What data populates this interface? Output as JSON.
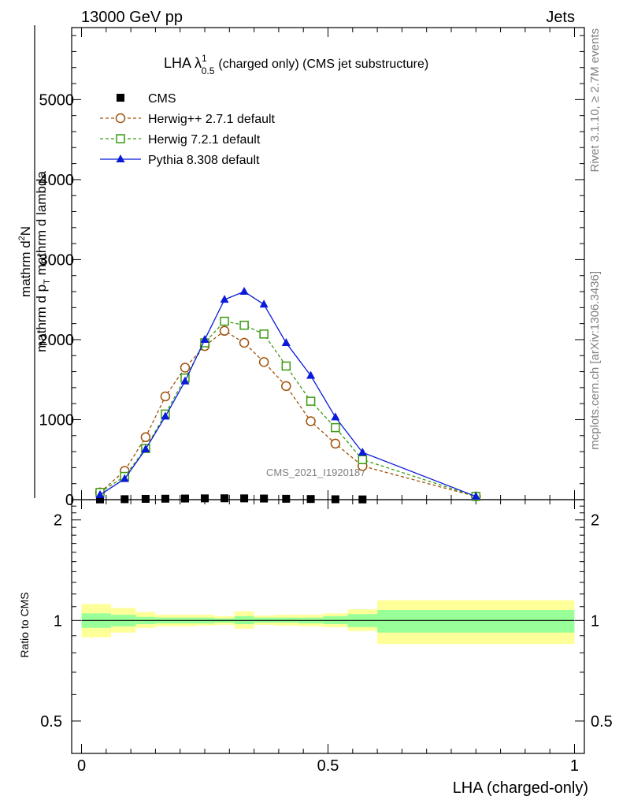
{
  "header": {
    "energy_label": "13000 GeV pp",
    "process_label": "Jets"
  },
  "side": {
    "rivet_label": "Rivet 3.1.10, ≥ 2.7M events",
    "source_label": "mcplots.cern.ch [arXiv:1306.3436]"
  },
  "chart_data": [
    {
      "type": "line",
      "title_main": "LHA λ",
      "title_sup": "1",
      "title_sub": "0.5",
      "title_rest": "(charged only) (CMS jet substructure)",
      "watermark": "CMS_2021_I1920187",
      "ylabel_num_frac_top": "1",
      "ylabel_num_frac_bottom": "mathrm d N / mathrm d p",
      "ylabel_num_sub": "T",
      "ylabel_num_rest": " mathrm d p",
      "ylabel_num_rest_sub": "T",
      "ylabel_num_tail": "mathrm d lambda",
      "ylabel_top": "mathrm d",
      "ylabel_top_sup": "2",
      "ylabel_top_rest": "N",
      "ylabel_bottom": "mathrm d p",
      "ylabel_bottom_sub": "T",
      "ylabel_bottom_rest": " mathrm d lambda",
      "xlim": [
        -0.02,
        1.02
      ],
      "ylim": [
        0,
        5900
      ],
      "y_ticks": [
        0,
        1000,
        2000,
        3000,
        4000,
        5000
      ],
      "y_tick_labels": [
        "0",
        "1000",
        "2000",
        "3000",
        "4000",
        "5000"
      ],
      "legend_position": "top-left",
      "series": [
        {
          "name": "CMS",
          "color": "#000000",
          "marker": "square-filled",
          "x": [
            0.0375,
            0.0875,
            0.13,
            0.17,
            0.21,
            0.25,
            0.29,
            0.33,
            0.37,
            0.415,
            0.465,
            0.515,
            0.57
          ],
          "y": [
            3,
            6,
            10,
            12,
            14,
            16,
            17,
            16,
            14,
            11,
            8,
            5,
            3
          ]
        },
        {
          "name": "Herwig++ 2.7.1 default",
          "color": "#a0520a",
          "marker": "circle-open",
          "dashed": true,
          "x": [
            0.0375,
            0.0875,
            0.13,
            0.17,
            0.21,
            0.25,
            0.29,
            0.33,
            0.37,
            0.415,
            0.465,
            0.515,
            0.57,
            0.8
          ],
          "y": [
            90,
            360,
            780,
            1290,
            1650,
            1920,
            2110,
            1960,
            1720,
            1420,
            980,
            700,
            420,
            40
          ]
        },
        {
          "name": "Herwig 7.2.1 default",
          "color": "#3a9a12",
          "marker": "square-open",
          "dashed": true,
          "x": [
            0.0375,
            0.0875,
            0.13,
            0.17,
            0.21,
            0.25,
            0.29,
            0.33,
            0.37,
            0.415,
            0.465,
            0.515,
            0.57,
            0.8
          ],
          "y": [
            90,
            290,
            640,
            1070,
            1520,
            1960,
            2230,
            2180,
            2070,
            1670,
            1230,
            900,
            500,
            40
          ]
        },
        {
          "name": "Pythia 8.308 default",
          "color": "#0a1ad8",
          "marker": "triangle-filled",
          "dashed": false,
          "x": [
            0.0375,
            0.0875,
            0.13,
            0.17,
            0.21,
            0.25,
            0.29,
            0.33,
            0.37,
            0.415,
            0.465,
            0.515,
            0.57,
            0.8
          ],
          "y": [
            60,
            260,
            630,
            1040,
            1480,
            2000,
            2500,
            2600,
            2440,
            1960,
            1550,
            1030,
            590,
            40
          ]
        }
      ]
    },
    {
      "type": "area",
      "ylabel": "Ratio to CMS",
      "xlabel": "LHA (charged-only)",
      "xlim": [
        -0.02,
        1.02
      ],
      "ylim": [
        0.4,
        2.3
      ],
      "x_ticks": [
        0,
        0.5,
        1
      ],
      "x_tick_labels": [
        "0",
        "0.5",
        "1"
      ],
      "y_ticks": [
        0.5,
        1,
        2
      ],
      "y_tick_labels": [
        "0.5",
        "1",
        "2"
      ],
      "reference_line": 1,
      "bins": [
        {
          "lo": 0.0,
          "hi": 0.06,
          "inner": [
            0.95,
            1.05
          ],
          "outer": [
            0.89,
            1.12
          ]
        },
        {
          "lo": 0.06,
          "hi": 0.11,
          "inner": [
            0.96,
            1.04
          ],
          "outer": [
            0.92,
            1.09
          ]
        },
        {
          "lo": 0.11,
          "hi": 0.15,
          "inner": [
            0.975,
            1.025
          ],
          "outer": [
            0.95,
            1.06
          ]
        },
        {
          "lo": 0.15,
          "hi": 0.19,
          "inner": [
            0.98,
            1.02
          ],
          "outer": [
            0.96,
            1.04
          ]
        },
        {
          "lo": 0.19,
          "hi": 0.23,
          "inner": [
            0.98,
            1.02
          ],
          "outer": [
            0.96,
            1.04
          ]
        },
        {
          "lo": 0.23,
          "hi": 0.27,
          "inner": [
            0.98,
            1.02
          ],
          "outer": [
            0.965,
            1.04
          ]
        },
        {
          "lo": 0.27,
          "hi": 0.31,
          "inner": [
            0.985,
            1.015
          ],
          "outer": [
            0.97,
            1.03
          ]
        },
        {
          "lo": 0.31,
          "hi": 0.35,
          "inner": [
            0.975,
            1.03
          ],
          "outer": [
            0.945,
            1.065
          ]
        },
        {
          "lo": 0.35,
          "hi": 0.39,
          "inner": [
            0.985,
            1.02
          ],
          "outer": [
            0.97,
            1.035
          ]
        },
        {
          "lo": 0.39,
          "hi": 0.44,
          "inner": [
            0.985,
            1.02
          ],
          "outer": [
            0.965,
            1.04
          ]
        },
        {
          "lo": 0.44,
          "hi": 0.49,
          "inner": [
            0.98,
            1.02
          ],
          "outer": [
            0.96,
            1.04
          ]
        },
        {
          "lo": 0.49,
          "hi": 0.54,
          "inner": [
            0.975,
            1.03
          ],
          "outer": [
            0.955,
            1.05
          ]
        },
        {
          "lo": 0.54,
          "hi": 0.6,
          "inner": [
            0.955,
            1.045
          ],
          "outer": [
            0.93,
            1.08
          ]
        },
        {
          "lo": 0.6,
          "hi": 1.0,
          "inner": [
            0.92,
            1.075
          ],
          "outer": [
            0.85,
            1.15
          ]
        }
      ]
    }
  ]
}
